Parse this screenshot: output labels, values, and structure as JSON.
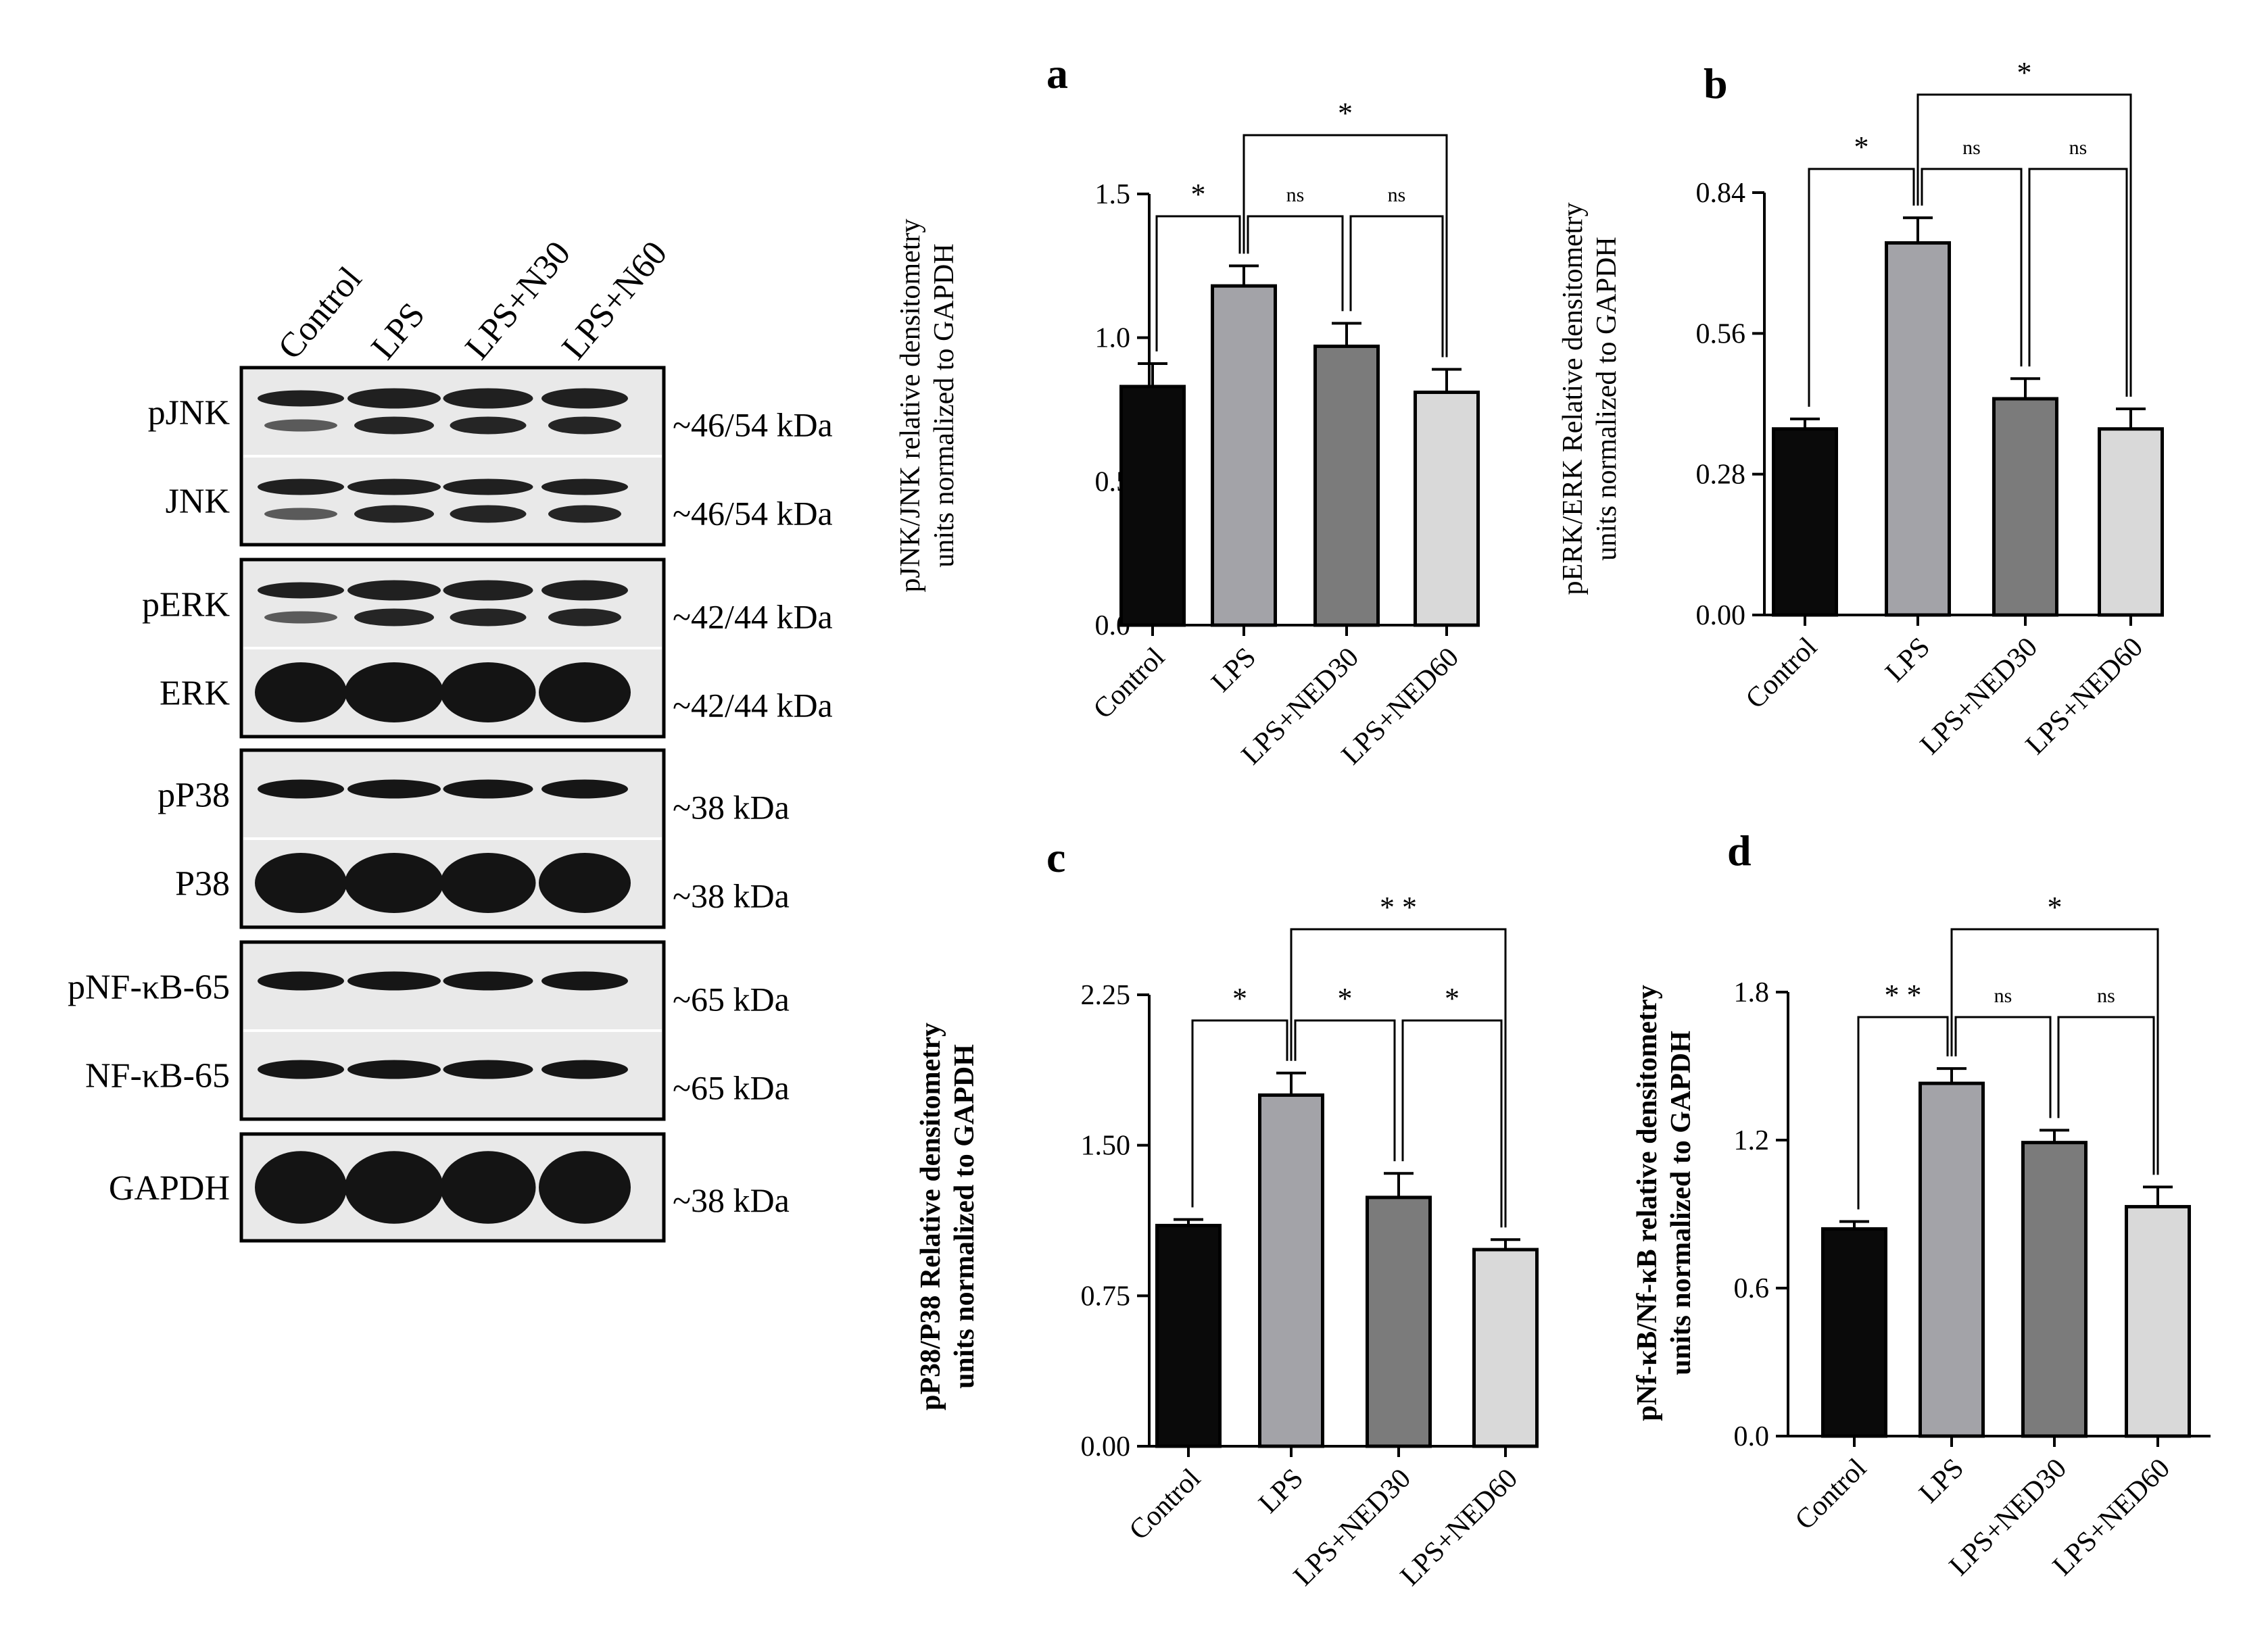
{
  "blot": {
    "lanes": [
      "Control",
      "LPS",
      "LPS+N30",
      "LPS+N60"
    ],
    "groups": [
      {
        "rows": [
          {
            "label": "pJNK",
            "size": "~46/54 kDa",
            "band": "double-top"
          },
          {
            "label": "JNK",
            "size": "~46/54 kDa",
            "band": "double"
          }
        ]
      },
      {
        "rows": [
          {
            "label": "pERK",
            "size": "~42/44 kDa",
            "band": "double-top"
          },
          {
            "label": "ERK",
            "size": "~42/44 kDa",
            "band": "heavy"
          }
        ]
      },
      {
        "rows": [
          {
            "label": "pP38",
            "size": "~38 kDa",
            "band": "single"
          },
          {
            "label": "P38",
            "size": "~38 kDa",
            "band": "heavy"
          }
        ]
      },
      {
        "rows": [
          {
            "label": "pNF-κB-65",
            "size": "~65 kDa",
            "band": "single"
          },
          {
            "label": "NF-κB-65",
            "size": "~65 kDa",
            "band": "single"
          }
        ]
      },
      {
        "rows": [
          {
            "label": "GAPDH",
            "size": "~38 kDa",
            "band": "heavy"
          }
        ]
      }
    ]
  },
  "colors": {
    "bars": [
      "#0a0a0a",
      "#a3a3a8",
      "#7b7b7b",
      "#d9d9d9"
    ],
    "axis": "#000000"
  },
  "chart_data": [
    {
      "panel": "a",
      "type": "bar",
      "categories": [
        "Control",
        "LPS",
        "LPS+NED30",
        "LPS+NED60"
      ],
      "values": [
        0.83,
        1.18,
        0.97,
        0.81
      ],
      "errors": [
        0.08,
        0.07,
        0.08,
        0.08
      ],
      "ylabel": [
        "pJNK/JNK relative densitometry",
        "units normalized to GAPDH"
      ],
      "ylim": [
        0,
        1.5
      ],
      "yticks": [
        "0.0",
        "0.5",
        "1.0",
        "1.5"
      ],
      "ytick_values": [
        0,
        0.5,
        1.0,
        1.5
      ],
      "significance": [
        {
          "from": 0,
          "to": 1,
          "label": "*"
        },
        {
          "from": 1,
          "to": 2,
          "label": "ns"
        },
        {
          "from": 2,
          "to": 3,
          "label": "ns"
        },
        {
          "from": 1,
          "to": 3,
          "label": "*"
        }
      ]
    },
    {
      "panel": "b",
      "type": "bar",
      "categories": [
        "Control",
        "LPS",
        "LPS+NED30",
        "LPS+NED60"
      ],
      "values": [
        0.37,
        0.74,
        0.43,
        0.37
      ],
      "errors": [
        0.02,
        0.05,
        0.04,
        0.04
      ],
      "ylabel": [
        "pERK/ERK Relative densitometry",
        "units normalized to GAPDH"
      ],
      "ylim": [
        0,
        0.84
      ],
      "yticks": [
        "0.00",
        "0.28",
        "0.56",
        "0.84"
      ],
      "ytick_values": [
        0,
        0.28,
        0.56,
        0.84
      ],
      "significance": [
        {
          "from": 0,
          "to": 1,
          "label": "*"
        },
        {
          "from": 1,
          "to": 2,
          "label": "ns"
        },
        {
          "from": 2,
          "to": 3,
          "label": "ns"
        },
        {
          "from": 1,
          "to": 3,
          "label": "*"
        }
      ]
    },
    {
      "panel": "c",
      "type": "bar",
      "categories": [
        "Control",
        "LPS",
        "LPS+NED30",
        "LPS+NED60"
      ],
      "values": [
        1.1,
        1.75,
        1.24,
        0.98
      ],
      "errors": [
        0.03,
        0.11,
        0.12,
        0.05
      ],
      "ylabel": [
        "pP38/P38 Relative densitometry",
        "units normalized to GAPDH"
      ],
      "ylim": [
        0,
        2.25
      ],
      "yticks": [
        "0.00",
        "0.75",
        "1.50",
        "2.25"
      ],
      "ytick_values": [
        0,
        0.75,
        1.5,
        2.25
      ],
      "significance": [
        {
          "from": 0,
          "to": 1,
          "label": "*"
        },
        {
          "from": 1,
          "to": 2,
          "label": "*"
        },
        {
          "from": 2,
          "to": 3,
          "label": "*"
        },
        {
          "from": 1,
          "to": 3,
          "label": "* *"
        }
      ]
    },
    {
      "panel": "d",
      "type": "bar",
      "categories": [
        "Control",
        "LPS",
        "LPS+NED30",
        "LPS+NED60"
      ],
      "values": [
        0.84,
        1.43,
        1.19,
        0.93
      ],
      "errors": [
        0.03,
        0.06,
        0.05,
        0.08
      ],
      "ylabel": [
        "pNf-κB/Nf-κB relative densitometry",
        "units normalized to GAPDH"
      ],
      "ylim": [
        0,
        1.8
      ],
      "yticks": [
        "0.0",
        "0.6",
        "1.2",
        "1.8"
      ],
      "ytick_values": [
        0,
        0.6,
        1.2,
        1.8
      ],
      "significance": [
        {
          "from": 0,
          "to": 1,
          "label": "* *"
        },
        {
          "from": 1,
          "to": 2,
          "label": "ns"
        },
        {
          "from": 2,
          "to": 3,
          "label": "ns"
        },
        {
          "from": 1,
          "to": 3,
          "label": "*"
        }
      ]
    }
  ]
}
